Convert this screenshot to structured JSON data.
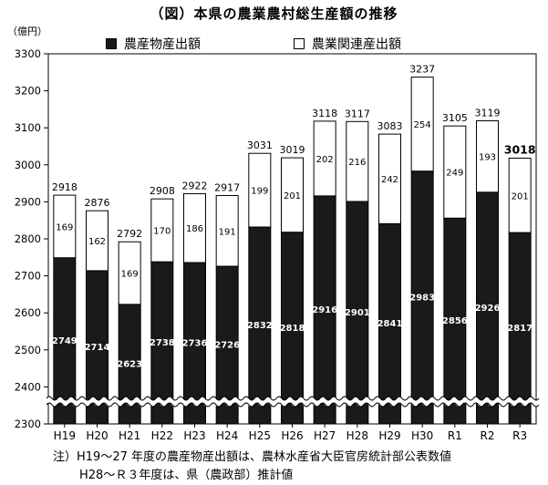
{
  "title": "（図）本県の農業農村総生産額の推移",
  "unit": "（億円）",
  "legend": {
    "primary": "農産物産出額",
    "related": "農業関連産出額"
  },
  "notes": [
    "注）H19～27 年度の農産物産出額は、農林水産省大臣官房統計部公表数値",
    "H28～Ｒ３年度は、県（農政部）推計値"
  ],
  "colors": {
    "primary": "#1a1a1a",
    "related": "#ffffff",
    "axis": "#000000"
  },
  "chart_data": {
    "type": "bar",
    "stacked": true,
    "categories": [
      "H19",
      "H20",
      "H21",
      "H22",
      "H23",
      "H24",
      "H25",
      "H26",
      "H27",
      "H28",
      "H29",
      "H30",
      "R1",
      "R2",
      "R3"
    ],
    "series": [
      {
        "name": "農産物産出額",
        "values": [
          2749,
          2714,
          2623,
          2738,
          2736,
          2726,
          2832,
          2818,
          2916,
          2901,
          2841,
          2983,
          2856,
          2926,
          2817
        ]
      },
      {
        "name": "農業関連産出額",
        "values": [
          169,
          162,
          169,
          170,
          186,
          191,
          199,
          201,
          202,
          216,
          242,
          254,
          249,
          193,
          201
        ]
      }
    ],
    "totals": [
      "2918",
      "2876",
      "2792",
      "2908",
      "2922",
      "2917",
      "3031",
      "3019",
      "3118",
      "3117",
      "3083",
      "3237",
      "3105",
      "3119",
      "3018"
    ],
    "ylim": [
      2300,
      3300
    ],
    "yticks": [
      2300,
      2400,
      2500,
      2600,
      2700,
      2800,
      2900,
      3000,
      3100,
      3200,
      3300
    ],
    "axis_break": true,
    "grid": false,
    "legend_position": "top"
  }
}
